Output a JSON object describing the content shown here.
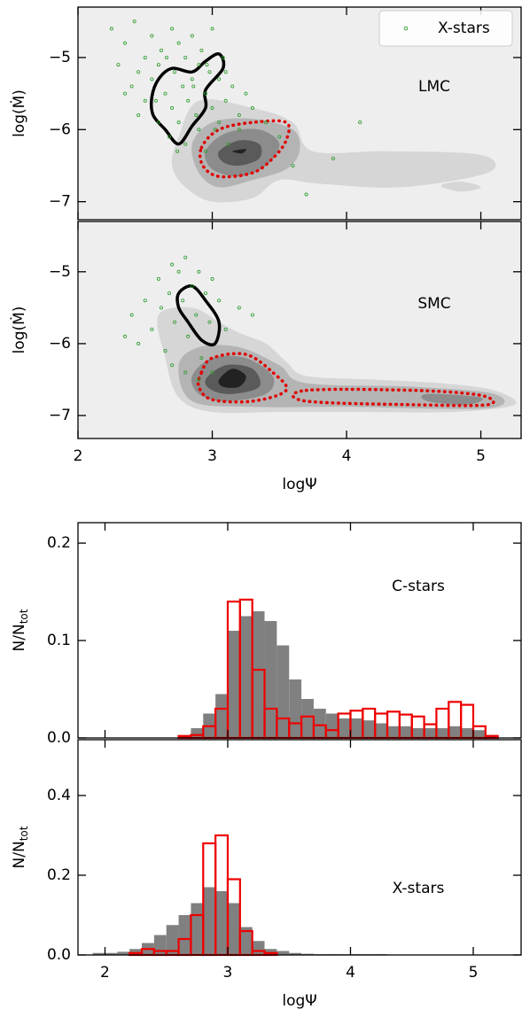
{
  "chart_data": [
    {
      "type": "scatter",
      "xlim": [
        2,
        5.3
      ],
      "ylim": [
        -7.25,
        -4.3
      ],
      "xticks": [
        2,
        3,
        4,
        5
      ],
      "yticks": [
        {
          "value": -7,
          "label": "−7"
        },
        {
          "value": -6,
          "label": "−6"
        },
        {
          "value": -5,
          "label": "−5"
        }
      ],
      "ylabel": "log(Ṁ)",
      "annotation": "LMC",
      "legend": "upper right",
      "contours": [
        {
          "fill": "#d6d6d6",
          "x": [
            2.75,
            2.9,
            3.3,
            3.6,
            3.75,
            4.3,
            5.0,
            5.05,
            4.4,
            3.8,
            3.5,
            3.3,
            3.0,
            2.8,
            2.7
          ],
          "y": [
            -6.1,
            -5.6,
            -5.7,
            -5.9,
            -6.3,
            -6.3,
            -6.35,
            -6.6,
            -6.8,
            -6.75,
            -6.7,
            -6.95,
            -7.0,
            -6.8,
            -6.5
          ]
        },
        {
          "fill": "#d6d6d6",
          "x": [
            4.7,
            4.85,
            5.0,
            4.85
          ],
          "y": [
            -6.78,
            -6.72,
            -6.8,
            -6.86
          ]
        },
        {
          "fill": "#b4b4b4",
          "x": [
            2.85,
            3.0,
            3.3,
            3.6,
            3.65,
            3.55,
            3.3,
            3.05,
            2.9
          ],
          "y": [
            -6.2,
            -5.9,
            -5.85,
            -6.0,
            -6.3,
            -6.55,
            -6.7,
            -6.8,
            -6.6
          ]
        },
        {
          "fill": "#8c8c8c",
          "x": [
            2.95,
            3.1,
            3.35,
            3.5,
            3.4,
            3.2,
            3.0
          ],
          "y": [
            -6.3,
            -6.05,
            -6.0,
            -6.2,
            -6.5,
            -6.65,
            -6.55
          ]
        },
        {
          "fill": "#5a5a5a",
          "x": [
            3.05,
            3.2,
            3.35,
            3.35,
            3.2,
            3.08
          ],
          "y": [
            -6.3,
            -6.15,
            -6.2,
            -6.4,
            -6.5,
            -6.45
          ]
        },
        {
          "fill": "#222222",
          "x": [
            3.15,
            3.25,
            3.22
          ],
          "y": [
            -6.3,
            -6.27,
            -6.33
          ]
        },
        {
          "stroke": "#e00000",
          "dash": true,
          "x": [
            2.92,
            3.05,
            3.3,
            3.55,
            3.55,
            3.45,
            3.3,
            3.05,
            2.93
          ],
          "y": [
            -6.25,
            -6.0,
            -5.9,
            -5.9,
            -6.15,
            -6.4,
            -6.6,
            -6.65,
            -6.5
          ]
        },
        {
          "stroke": "#000000",
          "x": [
            2.55,
            2.6,
            2.7,
            2.85,
            2.95,
            3.05,
            3.08,
            2.95,
            2.95,
            2.85,
            2.75,
            2.65,
            2.56
          ],
          "y": [
            -5.55,
            -5.3,
            -5.15,
            -5.2,
            -5.05,
            -4.95,
            -5.15,
            -5.45,
            -5.7,
            -5.95,
            -6.2,
            -6.0,
            -5.8
          ]
        }
      ],
      "series": [
        {
          "name": "X-stars",
          "color": "#2a9a2a",
          "x": [
            2.25,
            2.3,
            2.35,
            2.4,
            2.42,
            2.45,
            2.5,
            2.5,
            2.55,
            2.55,
            2.6,
            2.6,
            2.62,
            2.65,
            2.68,
            2.7,
            2.7,
            2.72,
            2.75,
            2.75,
            2.78,
            2.8,
            2.8,
            2.82,
            2.85,
            2.85,
            2.88,
            2.9,
            2.9,
            2.92,
            2.95,
            2.95,
            2.98,
            3.0,
            3.0,
            3.02,
            3.05,
            3.05,
            3.08,
            3.1,
            3.12,
            3.15,
            3.2,
            3.25,
            3.3,
            3.4,
            3.5,
            3.6,
            3.7,
            3.9,
            4.1,
            2.35,
            2.45,
            2.58,
            2.66,
            2.74,
            2.86,
            2.96,
            3.1,
            3.2
          ],
          "y": [
            -4.6,
            -5.1,
            -4.8,
            -5.4,
            -4.5,
            -5.8,
            -5.0,
            -5.6,
            -4.7,
            -5.3,
            -5.9,
            -5.1,
            -4.9,
            -5.5,
            -6.1,
            -4.6,
            -5.7,
            -5.2,
            -5.9,
            -4.8,
            -5.4,
            -6.2,
            -5.0,
            -5.6,
            -4.7,
            -5.3,
            -5.8,
            -5.1,
            -6.0,
            -4.9,
            -5.5,
            -6.3,
            -5.2,
            -5.7,
            -4.6,
            -6.0,
            -5.3,
            -5.9,
            -5.0,
            -5.6,
            -6.2,
            -5.4,
            -5.8,
            -5.5,
            -5.7,
            -5.9,
            -6.1,
            -6.5,
            -6.9,
            -6.4,
            -5.9,
            -5.5,
            -5.2,
            -5.6,
            -5.0,
            -6.3,
            -5.4,
            -5.1,
            -5.2,
            -6.0
          ]
        }
      ]
    },
    {
      "type": "scatter",
      "xlim": [
        2,
        5.3
      ],
      "ylim": [
        -7.32,
        -4.3
      ],
      "xticks": [
        2,
        3,
        4,
        5
      ],
      "yticks": [
        {
          "value": -7,
          "label": "−7"
        },
        {
          "value": -6,
          "label": "−6"
        },
        {
          "value": -5,
          "label": "−5"
        }
      ],
      "xlabel": "logΨ",
      "ylabel": "log(Ṁ)",
      "annotation": "SMC",
      "contours": [
        {
          "fill": "#d6d6d6",
          "x": [
            2.6,
            2.85,
            3.05,
            3.2,
            3.4,
            3.55,
            3.7,
            4.2,
            4.7,
            5.1,
            5.25,
            4.8,
            4.0,
            3.5,
            3.0,
            2.75,
            2.65
          ],
          "y": [
            -5.6,
            -5.5,
            -5.7,
            -5.85,
            -6.0,
            -6.25,
            -6.45,
            -6.5,
            -6.55,
            -6.65,
            -6.85,
            -6.95,
            -6.95,
            -6.95,
            -6.95,
            -6.75,
            -6.2
          ]
        },
        {
          "fill": "#b4b4b4",
          "x": [
            2.75,
            2.9,
            3.2,
            3.5,
            3.7,
            4.5,
            5.1,
            5.05,
            4.0,
            3.3,
            2.85
          ],
          "y": [
            -6.3,
            -6.05,
            -6.05,
            -6.3,
            -6.55,
            -6.6,
            -6.7,
            -6.9,
            -6.88,
            -6.88,
            -6.8
          ]
        },
        {
          "fill": "#8c8c8c",
          "x": [
            2.85,
            3.0,
            3.25,
            3.45,
            3.4,
            3.1,
            2.9
          ],
          "y": [
            -6.45,
            -6.2,
            -6.2,
            -6.45,
            -6.7,
            -6.8,
            -6.7
          ]
        },
        {
          "fill": "#8c8c8c",
          "x": [
            4.6,
            5.0,
            4.9,
            4.6
          ],
          "y": [
            -6.7,
            -6.75,
            -6.85,
            -6.8
          ]
        },
        {
          "fill": "#5a5a5a",
          "x": [
            2.95,
            3.1,
            3.3,
            3.35,
            3.15,
            3.0
          ],
          "y": [
            -6.5,
            -6.3,
            -6.35,
            -6.6,
            -6.7,
            -6.65
          ]
        },
        {
          "fill": "#222222",
          "x": [
            3.05,
            3.15,
            3.25,
            3.2,
            3.08
          ],
          "y": [
            -6.5,
            -6.35,
            -6.45,
            -6.6,
            -6.6
          ]
        },
        {
          "stroke": "#e00000",
          "dash": true,
          "x": [
            2.92,
            3.0,
            3.25,
            3.45,
            3.55,
            3.3,
            3.0,
            2.9
          ],
          "y": [
            -6.4,
            -6.2,
            -6.15,
            -6.4,
            -6.65,
            -6.8,
            -6.78,
            -6.6
          ]
        },
        {
          "stroke": "#e00000",
          "dash": true,
          "x": [
            3.7,
            4.5,
            5.0,
            5.05,
            4.5,
            3.7
          ],
          "y": [
            -6.65,
            -6.65,
            -6.72,
            -6.85,
            -6.85,
            -6.8
          ]
        },
        {
          "stroke": "#000000",
          "x": [
            2.75,
            2.85,
            2.95,
            3.05,
            3.02,
            2.92,
            2.82,
            2.75
          ],
          "y": [
            -5.3,
            -5.2,
            -5.4,
            -5.7,
            -6.0,
            -5.95,
            -5.7,
            -5.5
          ]
        }
      ],
      "series": [
        {
          "color": "#2a9a2a",
          "x": [
            2.35,
            2.4,
            2.45,
            2.5,
            2.55,
            2.6,
            2.62,
            2.65,
            2.68,
            2.7,
            2.72,
            2.75,
            2.78,
            2.8,
            2.82,
            2.85,
            2.88,
            2.9,
            2.92,
            2.95,
            2.98,
            3.0,
            3.05,
            3.1,
            3.2,
            3.3,
            2.7,
            2.8,
            2.9,
            3.0
          ],
          "y": [
            -5.9,
            -5.6,
            -6.0,
            -5.4,
            -5.8,
            -5.1,
            -5.5,
            -6.1,
            -5.3,
            -4.9,
            -5.7,
            -5.0,
            -5.4,
            -4.8,
            -5.9,
            -5.2,
            -5.6,
            -5.0,
            -6.2,
            -5.3,
            -5.7,
            -5.1,
            -5.4,
            -5.8,
            -5.5,
            -5.6,
            -6.3,
            -6.4,
            -6.5,
            -6.4
          ]
        }
      ]
    },
    {
      "type": "histogram",
      "xlim": [
        1.78,
        5.39
      ],
      "ylim": [
        0,
        0.221
      ],
      "xticks": [
        2,
        3,
        4,
        5
      ],
      "yticks": [
        {
          "value": 0,
          "label": "0.0"
        },
        0.1,
        0.2
      ],
      "ylabel": [
        "N/N",
        "tot"
      ],
      "annotation": "C-stars",
      "bins": [
        1.9,
        2.0,
        2.1,
        2.2,
        2.3,
        2.4,
        2.5,
        2.6,
        2.7,
        2.8,
        2.9,
        3.0,
        3.1,
        3.2,
        3.3,
        3.4,
        3.5,
        3.6,
        3.7,
        3.8,
        3.9,
        4.0,
        4.1,
        4.2,
        4.3,
        4.4,
        4.5,
        4.6,
        4.7,
        4.8,
        4.9,
        5.0,
        5.1,
        5.2,
        5.3
      ],
      "series": [
        {
          "color": "#808080",
          "filled": true,
          "values": [
            0,
            0,
            0,
            0,
            0,
            0,
            0,
            0.002,
            0.01,
            0.025,
            0.045,
            0.11,
            0.125,
            0.13,
            0.12,
            0.095,
            0.06,
            0.04,
            0.03,
            0.025,
            0.02,
            0.02,
            0.018,
            0.015,
            0.012,
            0.012,
            0.01,
            0.01,
            0.01,
            0.012,
            0.01,
            0.008,
            0.003,
            0
          ]
        },
        {
          "color": "#ee0000",
          "filled": false,
          "values": [
            0,
            0,
            0,
            0,
            0,
            0,
            0,
            0.002,
            0.003,
            0.012,
            0.03,
            0.14,
            0.142,
            0.07,
            0.03,
            0.02,
            0.015,
            0.022,
            0.013,
            0.008,
            0.025,
            0.028,
            0.03,
            0.025,
            0.027,
            0.024,
            0.022,
            0.014,
            0.03,
            0.037,
            0.034,
            0.012,
            0.002,
            0
          ]
        }
      ]
    },
    {
      "type": "histogram",
      "xlim": [
        1.78,
        5.39
      ],
      "ylim": [
        0,
        0.54
      ],
      "xticks": [
        2,
        3,
        4,
        5
      ],
      "yticks": [
        {
          "value": 0,
          "label": "0.0"
        },
        0.2,
        0.4
      ],
      "xlabel": "logΨ",
      "ylabel": [
        "N/N",
        "tot"
      ],
      "annotation": "X-stars",
      "bins": [
        1.9,
        2.0,
        2.1,
        2.2,
        2.3,
        2.4,
        2.5,
        2.6,
        2.7,
        2.8,
        2.9,
        3.0,
        3.1,
        3.2,
        3.3,
        3.4,
        3.5,
        3.6,
        3.7,
        3.8,
        3.9,
        4.0,
        4.1,
        4.2,
        4.3,
        4.4,
        4.5,
        4.6,
        4.7,
        4.8,
        4.9,
        5.0,
        5.1,
        5.2,
        5.3
      ],
      "series": [
        {
          "color": "#808080",
          "filled": true,
          "values": [
            0.005,
            0.005,
            0.008,
            0.015,
            0.03,
            0.05,
            0.075,
            0.1,
            0.13,
            0.17,
            0.16,
            0.13,
            0.07,
            0.035,
            0.015,
            0.01,
            0.005,
            0.003,
            0.002,
            0.002,
            0.002,
            0.002,
            0.002,
            0.002,
            0.001,
            0.001,
            0.001,
            0.001,
            0.001,
            0.001,
            0.001,
            0.001,
            0,
            0
          ]
        },
        {
          "color": "#ee0000",
          "filled": false,
          "values": [
            0,
            0,
            0,
            0.005,
            0.015,
            0.01,
            0.01,
            0.04,
            0.1,
            0.28,
            0.3,
            0.19,
            0.06,
            0.01,
            0.005,
            0,
            0,
            0,
            0,
            0,
            0,
            0,
            0,
            0,
            0,
            0,
            0,
            0,
            0,
            0,
            0,
            0,
            0,
            0
          ]
        }
      ]
    }
  ]
}
